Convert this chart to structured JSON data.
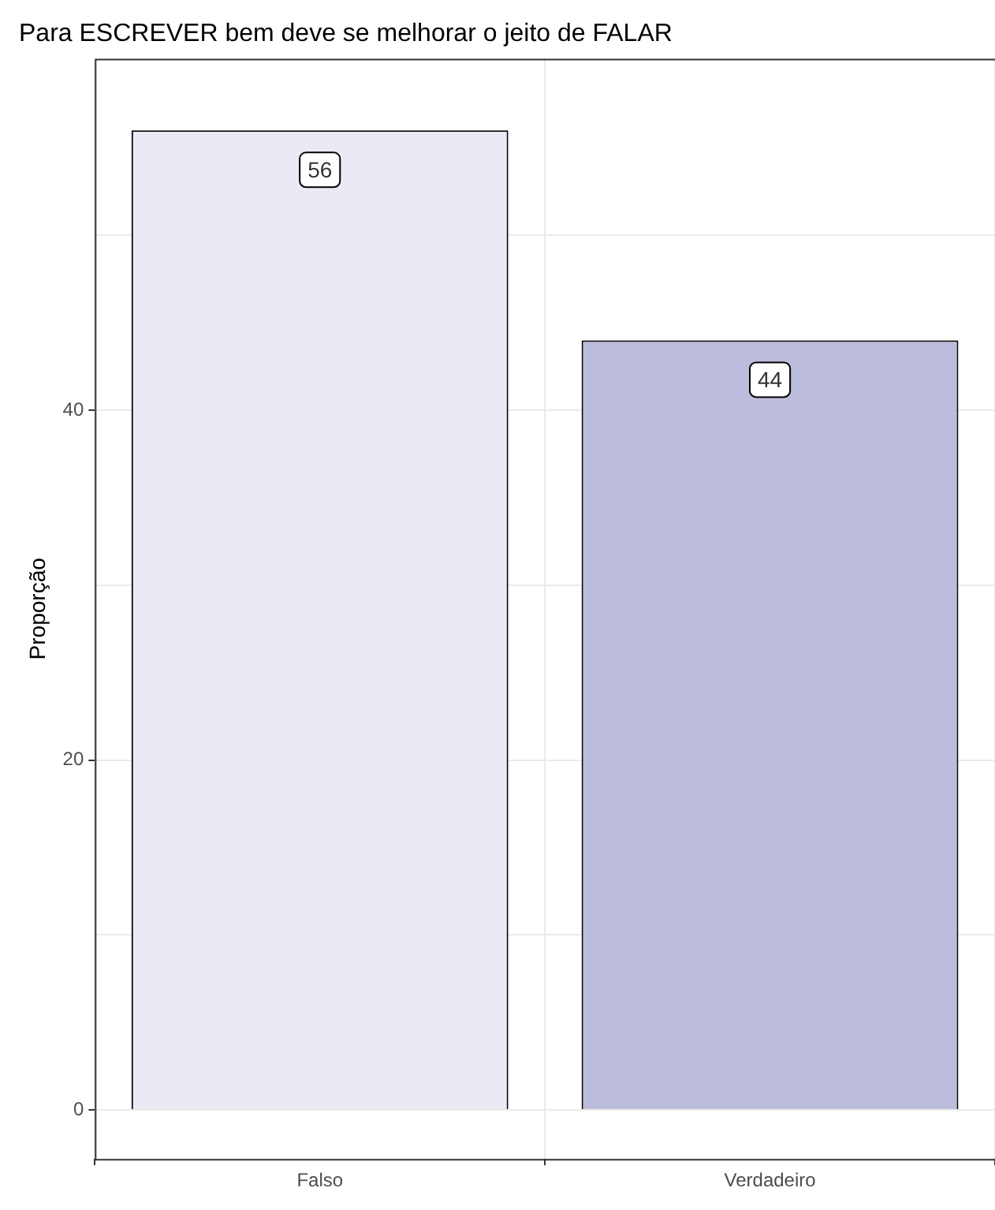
{
  "chart_data": {
    "type": "bar",
    "title": "Para ESCREVER bem deve se melhorar o jeito de FALAR",
    "ylabel": "Proporção",
    "categories": [
      "Falso",
      "Verdadeiro"
    ],
    "values": [
      56,
      44
    ],
    "colors": [
      "#ebe9f4",
      "#bcbddc"
    ],
    "ylim": [
      -2.8,
      60.1
    ],
    "yticks": [
      0,
      {
        "value": 10,
        "label": null
      },
      20,
      {
        "value": 30,
        "label": null
      },
      40,
      {
        "value": 50,
        "label": null
      }
    ],
    "grid": true,
    "data_labels": true
  }
}
